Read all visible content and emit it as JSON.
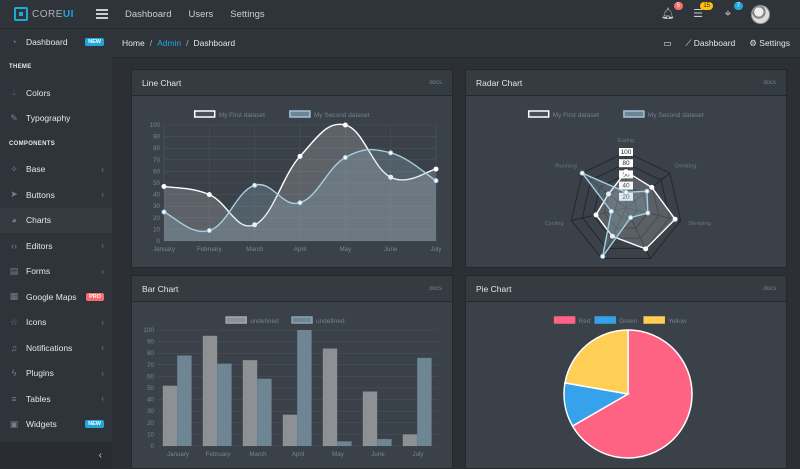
{
  "header": {
    "brand_main": "CORE",
    "brand_accent": "UI",
    "nav": [
      "Dashboard",
      "Users",
      "Settings"
    ],
    "badges": [
      {
        "icon": "bell-icon",
        "count": "5",
        "color": "#f86c6b"
      },
      {
        "icon": "list-icon",
        "count": "15",
        "color": "#ffc107"
      },
      {
        "icon": "location-icon",
        "count": "7",
        "color": "#20a8d8"
      }
    ]
  },
  "sidebar": {
    "dashboard": {
      "label": "Dashboard",
      "badge": "NEW",
      "icon": "speedometer-icon"
    },
    "theme_title": "THEME",
    "theme_items": [
      {
        "label": "Colors",
        "icon": "drop-icon"
      },
      {
        "label": "Typography",
        "icon": "pencil-icon"
      }
    ],
    "components_title": "COMPONENTS",
    "items": [
      {
        "label": "Base",
        "icon": "puzzle-icon",
        "chev": "‹"
      },
      {
        "label": "Buttons",
        "icon": "cursor-icon",
        "chev": "‹"
      },
      {
        "label": "Charts",
        "icon": "pie-chart-icon",
        "chev": ""
      },
      {
        "label": "Editors",
        "icon": "code-icon",
        "chev": "‹"
      },
      {
        "label": "Forms",
        "icon": "note-icon",
        "chev": "‹"
      },
      {
        "label": "Google Maps",
        "icon": "map-icon",
        "chev": "",
        "badge": "PRO"
      },
      {
        "label": "Icons",
        "icon": "star-icon",
        "chev": "‹"
      },
      {
        "label": "Notifications",
        "icon": "bell-icon",
        "chev": "‹"
      },
      {
        "label": "Plugins",
        "icon": "energy-icon",
        "chev": "‹"
      },
      {
        "label": "Tables",
        "icon": "list-icon",
        "chev": "‹"
      },
      {
        "label": "Widgets",
        "icon": "calculator-icon",
        "chev": "",
        "badge": "NEW"
      }
    ]
  },
  "breadcrumb": {
    "home": "Home",
    "admin": "Admin",
    "current": "Dashboard",
    "right": [
      "Dashboard",
      "Settings"
    ]
  },
  "cards": {
    "line": {
      "title": "Line Chart",
      "docs": "docs"
    },
    "radar": {
      "title": "Radar Chart",
      "docs": "docs"
    },
    "bar": {
      "title": "Bar Chart",
      "docs": "docs"
    },
    "pie": {
      "title": "Pie Chart",
      "docs": "docs"
    }
  },
  "chart_data": [
    {
      "type": "line",
      "categories": [
        "January",
        "February",
        "March",
        "April",
        "May",
        "June",
        "July"
      ],
      "series": [
        {
          "name": "My First dataset",
          "values": [
            47,
            40,
            14,
            73,
            100,
            55,
            62
          ]
        },
        {
          "name": "My Second dataset",
          "values": [
            25,
            9,
            48,
            33,
            72,
            76,
            52
          ]
        }
      ],
      "ylim": [
        0,
        100
      ],
      "yticks": [
        "0",
        "10",
        "20",
        "30",
        "40",
        "50",
        "60",
        "70",
        "80",
        "90",
        "100"
      ],
      "legend": "top-center",
      "grid": true
    },
    {
      "type": "radar",
      "categories": [
        "Eating",
        "Drinking",
        "Sleeping",
        "Designing",
        "Coding",
        "Cycling",
        "Running"
      ],
      "series": [
        {
          "name": "My First dataset",
          "values": [
            65,
            59,
            90,
            81,
            56,
            55,
            40
          ]
        },
        {
          "name": "My Second dataset",
          "values": [
            28,
            48,
            40,
            19,
            96,
            27,
            100
          ]
        }
      ],
      "rlim": [
        0,
        100
      ],
      "rticks": [
        "20",
        "40",
        "60",
        "80",
        "100"
      ],
      "legend": "top-center"
    },
    {
      "type": "bar",
      "categories": [
        "January",
        "February",
        "March",
        "April",
        "May",
        "June",
        "July"
      ],
      "series": [
        {
          "name": "undefined",
          "values": [
            52,
            95,
            74,
            27,
            84,
            47,
            10
          ]
        },
        {
          "name": "undefined",
          "values": [
            78,
            71,
            58,
            100,
            4,
            6,
            76
          ]
        }
      ],
      "ylim": [
        0,
        100
      ],
      "yticks": [
        "0",
        "10",
        "20",
        "30",
        "40",
        "50",
        "60",
        "70",
        "80",
        "90",
        "100"
      ],
      "legend": "top-center",
      "grid": true
    },
    {
      "type": "pie",
      "categories": [
        "Red",
        "Green",
        "Yellow"
      ],
      "values": [
        300,
        50,
        100
      ],
      "colors": [
        "#ff6384",
        "#36a2eb",
        "#ffce56"
      ],
      "legend": "top-center"
    }
  ]
}
